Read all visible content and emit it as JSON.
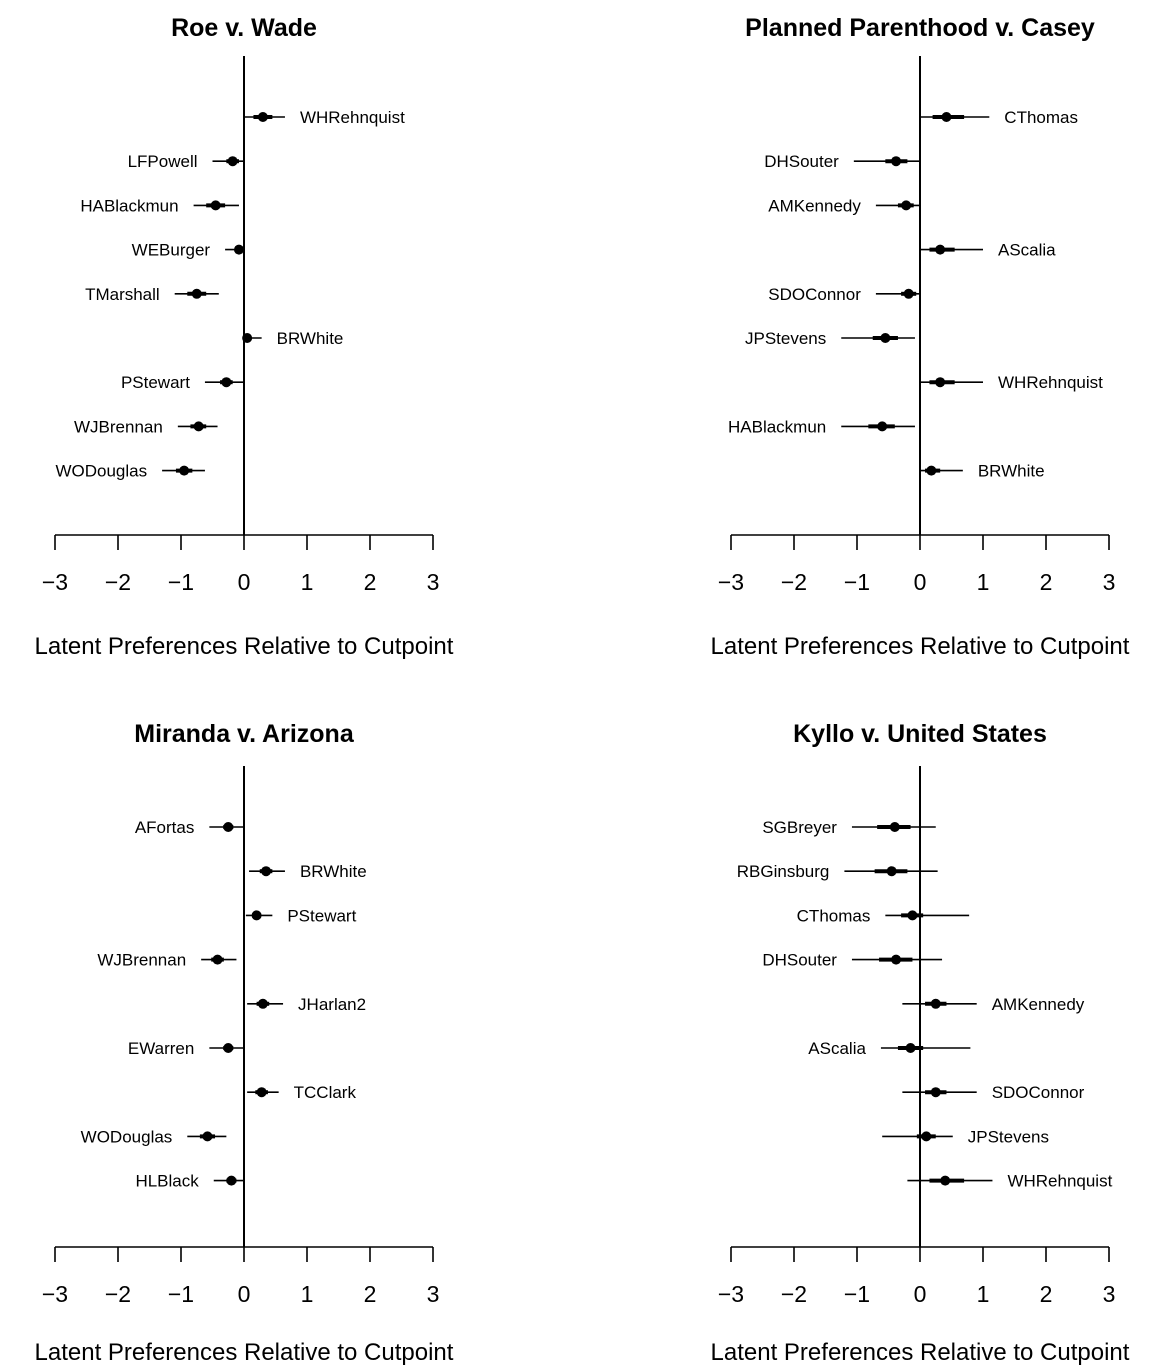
{
  "chart_data": [
    {
      "type": "scatter",
      "title": "Roe v. Wade",
      "xlabel": "Latent Preferences Relative to Cutpoint",
      "xlim": [
        -3,
        3
      ],
      "xticks": [
        "−3",
        "−2",
        "−1",
        "0",
        "1",
        "2",
        "3"
      ],
      "points": [
        {
          "label": "WHRehnquist",
          "estimate": 0.3,
          "inner": [
            0.15,
            0.45
          ],
          "outer": [
            0.0,
            0.65
          ]
        },
        {
          "label": "LFPowell",
          "estimate": -0.18,
          "inner": [
            -0.28,
            -0.08
          ],
          "outer": [
            -0.5,
            0.0
          ]
        },
        {
          "label": "HABlackmun",
          "estimate": -0.45,
          "inner": [
            -0.6,
            -0.3
          ],
          "outer": [
            -0.8,
            -0.08
          ]
        },
        {
          "label": "WEBurger",
          "estimate": -0.08,
          "inner": [
            -0.12,
            -0.04
          ],
          "outer": [
            -0.3,
            0.0
          ]
        },
        {
          "label": "TMarshall",
          "estimate": -0.75,
          "inner": [
            -0.9,
            -0.6
          ],
          "outer": [
            -1.1,
            -0.4
          ]
        },
        {
          "label": "BRWhite",
          "estimate": 0.05,
          "inner": [
            0.02,
            0.1
          ],
          "outer": [
            0.0,
            0.28
          ]
        },
        {
          "label": "PStewart",
          "estimate": -0.28,
          "inner": [
            -0.38,
            -0.18
          ],
          "outer": [
            -0.62,
            0.0
          ]
        },
        {
          "label": "WJBrennan",
          "estimate": -0.72,
          "inner": [
            -0.85,
            -0.6
          ],
          "outer": [
            -1.05,
            -0.42
          ]
        },
        {
          "label": "WODouglas",
          "estimate": -0.95,
          "inner": [
            -1.08,
            -0.82
          ],
          "outer": [
            -1.3,
            -0.62
          ]
        }
      ]
    },
    {
      "type": "scatter",
      "title": "Planned Parenthood v. Casey",
      "xlabel": "Latent Preferences Relative to Cutpoint",
      "xlim": [
        -3,
        3
      ],
      "xticks": [
        "−3",
        "−2",
        "−1",
        "0",
        "1",
        "2",
        "3"
      ],
      "points": [
        {
          "label": "CThomas",
          "estimate": 0.42,
          "inner": [
            0.2,
            0.7
          ],
          "outer": [
            0.0,
            1.1
          ]
        },
        {
          "label": "DHSouter",
          "estimate": -0.38,
          "inner": [
            -0.55,
            -0.2
          ],
          "outer": [
            -1.05,
            0.0
          ]
        },
        {
          "label": "AMKennedy",
          "estimate": -0.22,
          "inner": [
            -0.35,
            -0.1
          ],
          "outer": [
            -0.7,
            0.0
          ]
        },
        {
          "label": "AScalia",
          "estimate": 0.32,
          "inner": [
            0.15,
            0.55
          ],
          "outer": [
            0.0,
            1.0
          ]
        },
        {
          "label": "SDOConnor",
          "estimate": -0.18,
          "inner": [
            -0.3,
            -0.06
          ],
          "outer": [
            -0.7,
            0.0
          ]
        },
        {
          "label": "JPStevens",
          "estimate": -0.55,
          "inner": [
            -0.75,
            -0.35
          ],
          "outer": [
            -1.25,
            -0.08
          ]
        },
        {
          "label": "WHRehnquist",
          "estimate": 0.32,
          "inner": [
            0.15,
            0.55
          ],
          "outer": [
            0.0,
            1.0
          ]
        },
        {
          "label": "HABlackmun",
          "estimate": -0.6,
          "inner": [
            -0.82,
            -0.4
          ],
          "outer": [
            -1.25,
            -0.08
          ]
        },
        {
          "label": "BRWhite",
          "estimate": 0.18,
          "inner": [
            0.08,
            0.32
          ],
          "outer": [
            0.0,
            0.68
          ]
        }
      ]
    },
    {
      "type": "scatter",
      "title": "Miranda v. Arizona",
      "xlabel": "Latent Preferences Relative to Cutpoint",
      "xlim": [
        -3,
        3
      ],
      "xticks": [
        "−3",
        "−2",
        "−1",
        "0",
        "1",
        "2",
        "3"
      ],
      "points": [
        {
          "label": "AFortas",
          "estimate": -0.25,
          "inner": [
            -0.33,
            -0.17
          ],
          "outer": [
            -0.55,
            0.0
          ]
        },
        {
          "label": "BRWhite",
          "estimate": 0.35,
          "inner": [
            0.25,
            0.45
          ],
          "outer": [
            0.08,
            0.65
          ]
        },
        {
          "label": "PStewart",
          "estimate": 0.2,
          "inner": [
            0.13,
            0.27
          ],
          "outer": [
            0.03,
            0.45
          ]
        },
        {
          "label": "WJBrennan",
          "estimate": -0.42,
          "inner": [
            -0.52,
            -0.32
          ],
          "outer": [
            -0.68,
            -0.12
          ]
        },
        {
          "label": "JHarlan2",
          "estimate": 0.3,
          "inner": [
            0.2,
            0.4
          ],
          "outer": [
            0.05,
            0.62
          ]
        },
        {
          "label": "EWarren",
          "estimate": -0.25,
          "inner": [
            -0.33,
            -0.17
          ],
          "outer": [
            -0.55,
            0.0
          ]
        },
        {
          "label": "TCClark",
          "estimate": 0.28,
          "inner": [
            0.18,
            0.38
          ],
          "outer": [
            0.05,
            0.55
          ]
        },
        {
          "label": "WODouglas",
          "estimate": -0.58,
          "inner": [
            -0.7,
            -0.46
          ],
          "outer": [
            -0.9,
            -0.28
          ]
        },
        {
          "label": "HLBlack",
          "estimate": -0.2,
          "inner": [
            -0.28,
            -0.12
          ],
          "outer": [
            -0.48,
            0.0
          ]
        }
      ]
    },
    {
      "type": "scatter",
      "title": "Kyllo v. United States",
      "xlabel": "Latent Preferences Relative to Cutpoint",
      "xlim": [
        -3,
        3
      ],
      "xticks": [
        "−3",
        "−2",
        "−1",
        "0",
        "1",
        "2",
        "3"
      ],
      "points": [
        {
          "label": "SGBreyer",
          "estimate": -0.4,
          "inner": [
            -0.68,
            -0.15
          ],
          "outer": [
            -1.08,
            0.25
          ]
        },
        {
          "label": "RBGinsburg",
          "estimate": -0.45,
          "inner": [
            -0.72,
            -0.2
          ],
          "outer": [
            -1.2,
            0.28
          ]
        },
        {
          "label": "CThomas",
          "estimate": -0.12,
          "inner": [
            -0.3,
            0.05
          ],
          "outer": [
            -0.55,
            0.78
          ]
        },
        {
          "label": "DHSouter",
          "estimate": -0.38,
          "inner": [
            -0.65,
            -0.12
          ],
          "outer": [
            -1.08,
            0.35
          ]
        },
        {
          "label": "AMKennedy",
          "estimate": 0.25,
          "inner": [
            0.08,
            0.42
          ],
          "outer": [
            -0.28,
            0.9
          ]
        },
        {
          "label": "AScalia",
          "estimate": -0.15,
          "inner": [
            -0.35,
            0.05
          ],
          "outer": [
            -0.62,
            0.8
          ]
        },
        {
          "label": "SDOConnor",
          "estimate": 0.25,
          "inner": [
            0.08,
            0.42
          ],
          "outer": [
            -0.28,
            0.9
          ]
        },
        {
          "label": "JPStevens",
          "estimate": 0.1,
          "inner": [
            -0.05,
            0.25
          ],
          "outer": [
            -0.6,
            0.52
          ]
        },
        {
          "label": "WHRehnquist",
          "estimate": 0.4,
          "inner": [
            0.15,
            0.7
          ],
          "outer": [
            -0.2,
            1.15
          ]
        }
      ]
    }
  ]
}
